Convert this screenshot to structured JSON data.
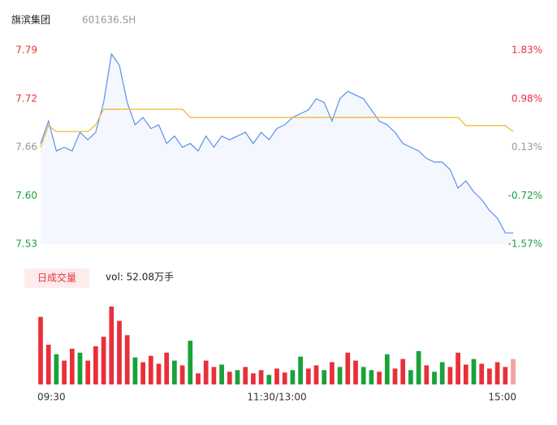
{
  "chart_data": [
    {
      "type": "line",
      "title": "旗滨集团",
      "subtitle": "601636.SH",
      "series": [
        {
          "name": "price",
          "color": "#5b8ff0",
          "values": [
            7.665,
            7.695,
            7.655,
            7.66,
            7.655,
            7.68,
            7.67,
            7.68,
            7.72,
            7.785,
            7.77,
            7.72,
            7.69,
            7.7,
            7.685,
            7.69,
            7.665,
            7.675,
            7.66,
            7.665,
            7.655,
            7.675,
            7.66,
            7.675,
            7.67,
            7.675,
            7.68,
            7.665,
            7.68,
            7.67,
            7.685,
            7.69,
            7.7,
            7.705,
            7.71,
            7.725,
            7.72,
            7.695,
            7.725,
            7.735,
            7.73,
            7.725,
            7.71,
            7.695,
            7.69,
            7.68,
            7.665,
            7.66,
            7.655,
            7.645,
            7.64,
            7.64,
            7.63,
            7.605,
            7.615,
            7.6,
            7.59,
            7.575,
            7.565,
            7.545,
            7.545
          ]
        },
        {
          "name": "average",
          "color": "#f0b429",
          "values": [
            7.66,
            7.689,
            7.681,
            7.681,
            7.681,
            7.681,
            7.681,
            7.69,
            7.711,
            7.711,
            7.711,
            7.711,
            7.711,
            7.711,
            7.711,
            7.711,
            7.711,
            7.711,
            7.711,
            7.7,
            7.7,
            7.7,
            7.7,
            7.7,
            7.7,
            7.7,
            7.7,
            7.7,
            7.7,
            7.7,
            7.7,
            7.7,
            7.7,
            7.7,
            7.7,
            7.7,
            7.7,
            7.7,
            7.7,
            7.7,
            7.7,
            7.7,
            7.7,
            7.7,
            7.7,
            7.7,
            7.7,
            7.7,
            7.7,
            7.7,
            7.7,
            7.7,
            7.7,
            7.7,
            7.689,
            7.689,
            7.689,
            7.689,
            7.689,
            7.689,
            7.681
          ]
        }
      ],
      "xlim": [
        0,
        60
      ],
      "ylim": [
        7.53,
        7.79
      ],
      "yticks": [
        7.79,
        {
          "value": 7.725,
          "label": "7.72"
        },
        7.66,
        {
          "value": 7.595,
          "label": "7.60"
        },
        7.53
      ],
      "ytick_colors": [
        "#e8303a",
        "#e8303a",
        "#999999",
        "#1aa23a",
        "#1aa23a"
      ],
      "y2lim": [
        -1.57,
        1.83
      ],
      "y2ticks": [
        {
          "value": 1.83,
          "label": "1.83%"
        },
        {
          "value": 0.98,
          "label": "0.98%"
        },
        {
          "value": 0.13,
          "label": "0.13%"
        },
        {
          "value": -0.72,
          "label": "-0.72%"
        },
        {
          "value": -1.57,
          "label": "-1.57%"
        }
      ],
      "y2tick_colors": [
        "#e8303a",
        "#e8303a",
        "#999999",
        "#1aa23a",
        "#1aa23a"
      ]
    },
    {
      "type": "bar",
      "title": "日成交量",
      "subtitle": "vol: 52.08万手",
      "values": [
        85,
        50,
        38,
        30,
        45,
        40,
        30,
        48,
        60,
        98,
        80,
        62,
        34,
        28,
        36,
        26,
        40,
        30,
        24,
        55,
        14,
        30,
        22,
        25,
        16,
        18,
        22,
        14,
        18,
        12,
        20,
        15,
        18,
        35,
        20,
        24,
        18,
        28,
        22,
        40,
        30,
        22,
        18,
        16,
        38,
        20,
        32,
        18,
        42,
        24,
        16,
        28,
        22,
        40,
        25,
        32,
        26,
        20,
        28,
        22,
        32
      ],
      "colors": [
        "#e8303a",
        "#e8303a",
        "#1aa23a",
        "#e8303a",
        "#e8303a",
        "#1aa23a",
        "#e8303a",
        "#e8303a",
        "#e8303a",
        "#e8303a",
        "#e8303a",
        "#e8303a",
        "#1aa23a",
        "#e8303a",
        "#e8303a",
        "#e8303a",
        "#e8303a",
        "#1aa23a",
        "#e8303a",
        "#1aa23a",
        "#e8303a",
        "#e8303a",
        "#e8303a",
        "#1aa23a",
        "#e8303a",
        "#1aa23a",
        "#e8303a",
        "#e8303a",
        "#e8303a",
        "#1aa23a",
        "#e8303a",
        "#e8303a",
        "#1aa23a",
        "#1aa23a",
        "#e8303a",
        "#e8303a",
        "#1aa23a",
        "#e8303a",
        "#1aa23a",
        "#e8303a",
        "#e8303a",
        "#1aa23a",
        "#1aa23a",
        "#e8303a",
        "#1aa23a",
        "#e8303a",
        "#e8303a",
        "#1aa23a",
        "#1aa23a",
        "#e8303a",
        "#1aa23a",
        "#1aa23a",
        "#e8303a",
        "#e8303a",
        "#e8303a",
        "#1aa23a",
        "#e8303a",
        "#e8303a",
        "#e8303a",
        "#e8303a",
        "#f5a0a5"
      ],
      "ylim": [
        0,
        100
      ],
      "xticks": [
        {
          "value": 0,
          "label": "09:30"
        },
        {
          "value": 30,
          "label": "11:30/13:00"
        },
        {
          "value": 60,
          "label": "15:00"
        }
      ]
    }
  ]
}
